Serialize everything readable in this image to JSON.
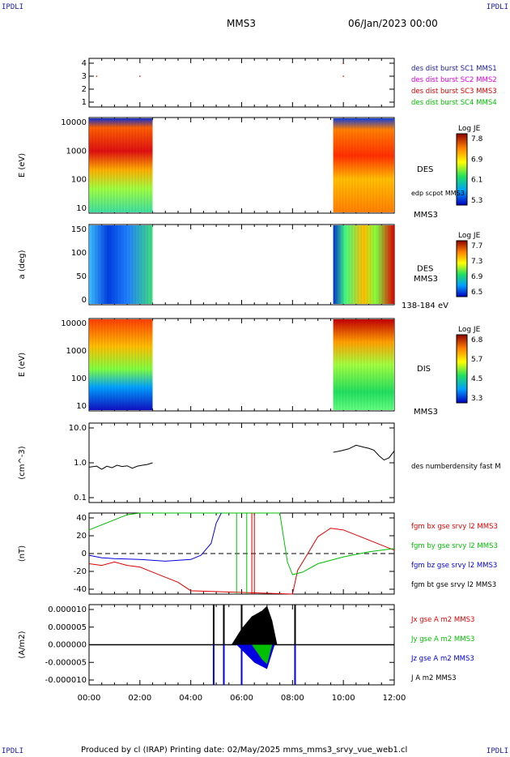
{
  "corners": {
    "tl": "IPDLI",
    "tr": "IPDLI",
    "bl": "IPDLI",
    "br": "IPDLI"
  },
  "header": {
    "spacecraft": "MMS3",
    "date": "06/Jan/2023 00:00"
  },
  "footer": "Produced by cl (IRAP)   Printing date: 02/May/2025   mms_mms3_srvy_vue_web1.cl",
  "time_axis": {
    "ticks": [
      "00:00",
      "02:00",
      "04:00",
      "06:00",
      "08:00",
      "10:00",
      "12:00"
    ]
  },
  "colors": {
    "red": "#e00000",
    "magenta": "#e000e0",
    "green": "#00c000",
    "blue": "#0000e0",
    "black": "#000000",
    "navy": "#1a1aa0"
  },
  "chart_data": [
    {
      "id": "burst",
      "type": "scatter",
      "yticks": [
        "4",
        "3",
        "2",
        "1"
      ],
      "ylim": [
        0.6,
        4.4
      ],
      "legend": [
        {
          "label": "des dist burst SC1 MMS1",
          "color": "#1a1aa0"
        },
        {
          "label": "des dist burst SC2 MMS2",
          "color": "#e000e0"
        },
        {
          "label": "des dist burst SC3 MMS3",
          "color": "#e00000"
        },
        {
          "label": "des dist burst SC4 MMS4",
          "color": "#00c000"
        }
      ],
      "points": [
        {
          "x": 0.3,
          "y": 3
        },
        {
          "x": 2.0,
          "y": 3
        },
        {
          "x": 10.0,
          "y": 3
        },
        {
          "x": 10.0,
          "y": 4
        }
      ]
    },
    {
      "id": "des_energy",
      "type": "heatmap",
      "ylabel": "E (eV)",
      "yticks": [
        "10000",
        "1000",
        "100",
        "10"
      ],
      "label": "DES",
      "sublabel": "edp scpot MMS3",
      "sc": "MMS3",
      "cbar": {
        "title": "Log JE",
        "ticks": [
          "7.8",
          "6.9",
          "6.1",
          "5.3"
        ]
      },
      "intervals": [
        [
          0.0,
          2.5
        ],
        [
          9.6,
          12.0
        ]
      ]
    },
    {
      "id": "des_pitch",
      "type": "heatmap",
      "ylabel": "a (deg)",
      "yticks": [
        "150",
        "100",
        "50",
        "0"
      ],
      "label": "DES",
      "sublabel": "MMS3",
      "range_label": "138-184 eV",
      "cbar": {
        "title": "Log JE",
        "ticks": [
          "7.7",
          "7.3",
          "6.9",
          "6.5"
        ]
      },
      "intervals": [
        [
          0.0,
          2.5
        ],
        [
          9.6,
          12.0
        ]
      ]
    },
    {
      "id": "dis_energy",
      "type": "heatmap",
      "ylabel": "E (eV)",
      "yticks": [
        "10000",
        "1000",
        "100",
        "10"
      ],
      "label": "DIS",
      "sc": "MMS3",
      "cbar": {
        "title": "Log JE",
        "ticks": [
          "6.8",
          "5.7",
          "4.5",
          "3.3"
        ]
      },
      "intervals": [
        [
          0.0,
          2.5
        ],
        [
          9.6,
          12.0
        ]
      ]
    },
    {
      "id": "density",
      "type": "line",
      "ylabel": "(cm^-3)",
      "yticks": [
        "10.0",
        "1.0",
        "0.1"
      ],
      "legend": [
        {
          "label": "des numberdensity fast M",
          "color": "#000000"
        }
      ],
      "seg1": {
        "x": [
          0,
          0.3,
          0.5,
          0.7,
          0.9,
          1.1,
          1.3,
          1.5,
          1.7,
          1.9,
          2.1,
          2.3,
          2.5
        ],
        "y": [
          0.75,
          0.8,
          0.65,
          0.8,
          0.72,
          0.85,
          0.78,
          0.82,
          0.7,
          0.8,
          0.85,
          0.9,
          1.0
        ]
      },
      "seg2": {
        "x": [
          9.6,
          9.9,
          10.2,
          10.5,
          10.8,
          11.0,
          11.2,
          11.4,
          11.6,
          11.8,
          12.0
        ],
        "y": [
          2.0,
          2.2,
          2.5,
          3.2,
          2.8,
          2.6,
          2.3,
          1.6,
          1.2,
          1.4,
          2.2
        ]
      }
    },
    {
      "id": "fgm",
      "type": "line",
      "ylabel": "(nT)",
      "yticks": [
        "40",
        "20",
        "0",
        "-20",
        "-40"
      ],
      "ylim": [
        -48,
        48
      ],
      "legend": [
        {
          "label": "fgm bx gse srvy l2 MMS3",
          "color": "#e00000"
        },
        {
          "label": "fgm by gse srvy l2 MMS3",
          "color": "#00c000"
        },
        {
          "label": "fgm bz gse srvy l2 MMS3",
          "color": "#0000e0"
        },
        {
          "label": "fgm bt gse srvy l2 MMS3",
          "color": "#000000"
        }
      ],
      "bx": {
        "x": [
          0,
          0.5,
          1,
          1.5,
          2,
          2.5,
          3,
          3.5,
          4,
          8,
          8.2,
          8.6,
          9,
          9.5,
          10,
          11,
          12
        ],
        "y": [
          -12,
          -14,
          -10,
          -14,
          -16,
          -22,
          -28,
          -34,
          -44,
          -48,
          -20,
          0,
          20,
          30,
          28,
          16,
          4
        ]
      },
      "by": {
        "x": [
          0,
          0.5,
          1,
          1.5,
          2,
          2.5,
          7.5,
          7.8,
          8.0,
          8.4,
          9,
          10,
          11,
          12
        ],
        "y": [
          28,
          34,
          40,
          46,
          48,
          48,
          48,
          -10,
          -25,
          -22,
          -12,
          -4,
          2,
          6
        ]
      },
      "bz": {
        "x": [
          0,
          0.5,
          1,
          2,
          3,
          4,
          4.4,
          4.8,
          5.0,
          5.2
        ],
        "y": [
          -2,
          -5,
          -6,
          -7,
          -9,
          -7,
          -2,
          12,
          36,
          48
        ]
      },
      "red_spikes": [
        6.4,
        6.5
      ],
      "green_spikes": [
        5.8,
        6.2
      ]
    },
    {
      "id": "current",
      "type": "line",
      "ylabel": "(A/m2)",
      "yticks": [
        "0.000010",
        "0.000005",
        "0.000000",
        "-0.000005",
        "-0.000010"
      ],
      "ylim": [
        -1e-05,
        1e-05
      ],
      "legend": [
        {
          "label": "Jx gse A m2 MMS3",
          "color": "#e00000"
        },
        {
          "label": "Jy gse A m2 MMS3",
          "color": "#00c000"
        },
        {
          "label": "Jz gse A m2 MMS3",
          "color": "#0000e0"
        },
        {
          "label": "J A m2 MMS3",
          "color": "#000000"
        }
      ],
      "spikes": [
        4.9,
        5.3,
        6.0,
        8.1
      ]
    }
  ]
}
